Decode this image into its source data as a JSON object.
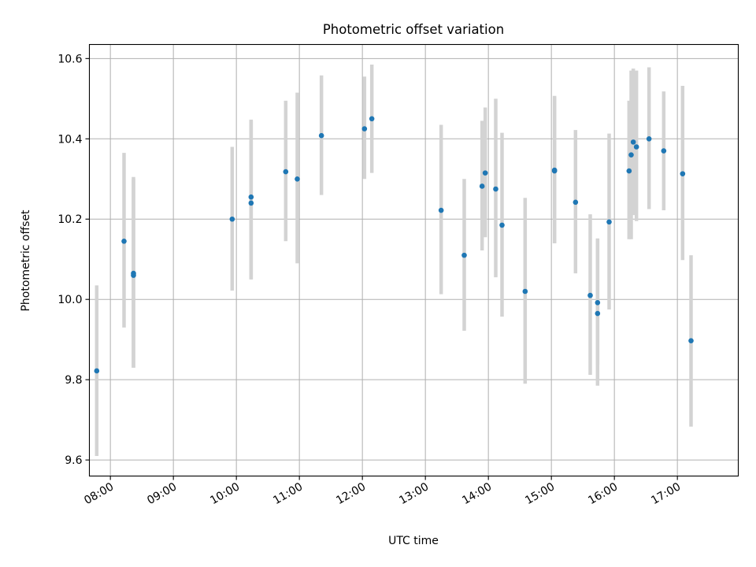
{
  "chart_data": {
    "type": "scatter",
    "title": "Photometric offset variation",
    "xlabel": "UTC time",
    "ylabel": "Photometric offset",
    "xlim": [
      "07:40",
      "17:58"
    ],
    "ylim": [
      9.56,
      10.635
    ],
    "xticks": [
      "08:00",
      "09:00",
      "10:00",
      "11:00",
      "12:00",
      "13:00",
      "14:00",
      "15:00",
      "16:00",
      "17:00"
    ],
    "yticks": [
      "9.6",
      "9.8",
      "10.0",
      "10.2",
      "10.4",
      "10.6"
    ],
    "grid": true,
    "point_color": "#1f77b4",
    "errorbar_color": "#d3d3d3",
    "points": [
      {
        "time": "07:47",
        "value": 9.822,
        "lower": 9.61,
        "upper": 10.035
      },
      {
        "time": "08:13",
        "value": 10.145,
        "lower": 9.93,
        "upper": 10.365
      },
      {
        "time": "08:22",
        "value": 10.065,
        "lower": 9.83,
        "upper": 10.305
      },
      {
        "time": "08:22",
        "value": 10.06,
        "lower": 9.83,
        "upper": 10.3
      },
      {
        "time": "09:56",
        "value": 10.2,
        "lower": 10.022,
        "upper": 10.38
      },
      {
        "time": "10:14",
        "value": 10.255,
        "lower": 10.05,
        "upper": 10.448
      },
      {
        "time": "10:14",
        "value": 10.24,
        "lower": 10.05,
        "upper": 10.445
      },
      {
        "time": "10:47",
        "value": 10.318,
        "lower": 10.145,
        "upper": 10.495
      },
      {
        "time": "10:58",
        "value": 10.3,
        "lower": 10.09,
        "upper": 10.515
      },
      {
        "time": "11:21",
        "value": 10.408,
        "lower": 10.26,
        "upper": 10.558
      },
      {
        "time": "12:02",
        "value": 10.425,
        "lower": 10.3,
        "upper": 10.555
      },
      {
        "time": "12:09",
        "value": 10.45,
        "lower": 10.315,
        "upper": 10.585
      },
      {
        "time": "13:15",
        "value": 10.222,
        "lower": 10.013,
        "upper": 10.435
      },
      {
        "time": "13:37",
        "value": 10.11,
        "lower": 9.922,
        "upper": 10.3
      },
      {
        "time": "13:54",
        "value": 10.282,
        "lower": 10.122,
        "upper": 10.445
      },
      {
        "time": "13:57",
        "value": 10.315,
        "lower": 10.155,
        "upper": 10.478
      },
      {
        "time": "14:07",
        "value": 10.275,
        "lower": 10.055,
        "upper": 10.5
      },
      {
        "time": "14:13",
        "value": 10.185,
        "lower": 9.957,
        "upper": 10.415
      },
      {
        "time": "14:35",
        "value": 10.02,
        "lower": 9.79,
        "upper": 10.253
      },
      {
        "time": "15:03",
        "value": 10.322,
        "lower": 10.14,
        "upper": 10.507
      },
      {
        "time": "15:03",
        "value": 10.32,
        "lower": 10.14,
        "upper": 10.505
      },
      {
        "time": "15:23",
        "value": 10.242,
        "lower": 10.065,
        "upper": 10.422
      },
      {
        "time": "15:37",
        "value": 10.01,
        "lower": 9.812,
        "upper": 10.212
      },
      {
        "time": "15:44",
        "value": 9.992,
        "lower": 9.838,
        "upper": 10.152
      },
      {
        "time": "15:44",
        "value": 9.965,
        "lower": 9.785,
        "upper": 10.15
      },
      {
        "time": "15:55",
        "value": 10.193,
        "lower": 9.975,
        "upper": 10.413
      },
      {
        "time": "16:14",
        "value": 10.32,
        "lower": 10.15,
        "upper": 10.495
      },
      {
        "time": "16:16",
        "value": 10.36,
        "lower": 10.15,
        "upper": 10.57
      },
      {
        "time": "16:18",
        "value": 10.392,
        "lower": 10.21,
        "upper": 10.575
      },
      {
        "time": "16:21",
        "value": 10.38,
        "lower": 10.195,
        "upper": 10.57
      },
      {
        "time": "16:33",
        "value": 10.4,
        "lower": 10.225,
        "upper": 10.578
      },
      {
        "time": "16:47",
        "value": 10.37,
        "lower": 10.222,
        "upper": 10.518
      },
      {
        "time": "17:05",
        "value": 10.313,
        "lower": 10.098,
        "upper": 10.532
      },
      {
        "time": "17:13",
        "value": 9.897,
        "lower": 9.683,
        "upper": 10.11
      }
    ]
  }
}
